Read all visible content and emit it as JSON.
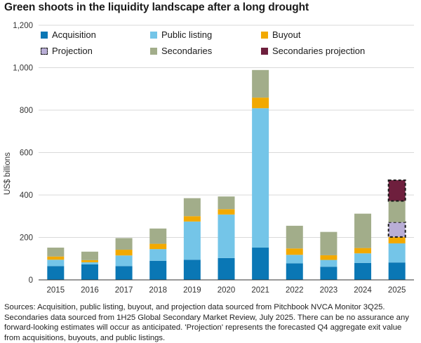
{
  "title": "Green shoots in the liquidity landscape after a long drought",
  "legend": {
    "acquisition": "Acquisition",
    "public_listing": "Public listing",
    "buyout": "Buyout",
    "projection": "Projection",
    "secondaries": "Secondaries",
    "secondaries_projection": "Secondaries projection"
  },
  "sources": "Sources: Acquisition, public listing, buyout, and projection data sourced from Pitchbook NVCA Monitor 3Q25. Secondaries data sourced from 1H25 Global Secondary Market Review, July 2025. There can be no assurance any forward-looking estimates will occur as anticipated. 'Projection' represents the forecasted Q4 aggregate exit value from acquisitions, buyouts, and public listings.",
  "colors": {
    "acquisition": "#0a77b5",
    "public_listing": "#74c5e8",
    "buyout": "#f2a900",
    "projection": "#b9aed6",
    "secondaries": "#a2ad8a",
    "secondaries_projection": "#6e1f3d"
  },
  "chart_data": {
    "type": "bar",
    "stacked": true,
    "categories": [
      "2015",
      "2016",
      "2017",
      "2018",
      "2019",
      "2020",
      "2021",
      "2022",
      "2023",
      "2024",
      "2025"
    ],
    "ylabel": "US$ billions",
    "ylim": [
      0,
      1200
    ],
    "yticks": [
      "0",
      "200",
      "400",
      "600",
      "800",
      "1,000",
      "1,200"
    ],
    "ytick_values": [
      0,
      200,
      400,
      600,
      800,
      1000,
      1200
    ],
    "grid": true,
    "legend_position": "top",
    "series": [
      {
        "name": "Acquisition",
        "key": "acquisition",
        "values": [
          65,
          73,
          65,
          90,
          95,
          103,
          152,
          78,
          62,
          80,
          82
        ]
      },
      {
        "name": "Public listing",
        "key": "public_listing",
        "values": [
          30,
          10,
          50,
          55,
          180,
          205,
          657,
          40,
          32,
          45,
          90
        ]
      },
      {
        "name": "Buyout",
        "key": "buyout",
        "values": [
          15,
          10,
          27,
          25,
          25,
          25,
          50,
          30,
          22,
          25,
          30
        ]
      },
      {
        "name": "Projection",
        "key": "projection",
        "values": [
          0,
          0,
          0,
          0,
          0,
          0,
          0,
          0,
          0,
          0,
          70
        ],
        "dashed": true
      },
      {
        "name": "Secondaries",
        "key": "secondaries",
        "values": [
          42,
          40,
          55,
          72,
          85,
          60,
          130,
          107,
          110,
          162,
          100
        ]
      },
      {
        "name": "Secondaries projection",
        "key": "secondaries_projection",
        "values": [
          0,
          0,
          0,
          0,
          0,
          0,
          0,
          0,
          0,
          0,
          98
        ],
        "dashed": true
      }
    ]
  }
}
